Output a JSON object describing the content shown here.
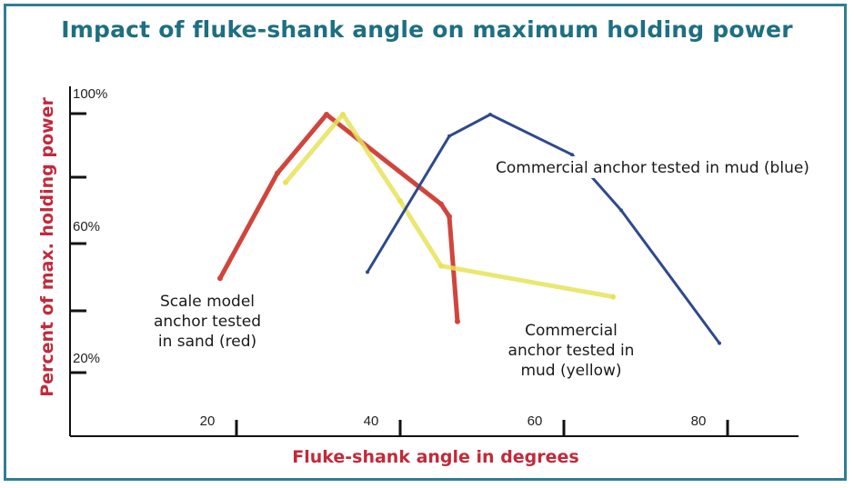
{
  "chart_data": {
    "type": "line",
    "title": "Impact of fluke-shank angle on maximum holding power",
    "xlabel": "Fluke-shank angle in degrees",
    "ylabel": "Percent of max. holding power",
    "x_ticks": [
      20,
      40,
      60,
      80
    ],
    "y_ticks": [
      "100%",
      "60%",
      "20%"
    ],
    "xlim": [
      10,
      85
    ],
    "ylim": [
      0,
      110
    ],
    "grid": false,
    "series": [
      {
        "name": "Scale model anchor tested in sand (red)",
        "color": "#d0453c",
        "x": [
          18,
          25,
          31,
          45,
          46,
          47
        ],
        "y": [
          47,
          81,
          100,
          71,
          67,
          33
        ]
      },
      {
        "name": "Commercial anchor tested in mud (yellow)",
        "color": "#e6e35a",
        "x": [
          26,
          33,
          40,
          45,
          66
        ],
        "y": [
          78,
          100,
          72,
          51,
          41
        ]
      },
      {
        "name": "Commercial anchor tested in mud (blue)",
        "color": "#2e4a8c",
        "x": [
          36,
          46,
          51,
          61,
          67,
          79
        ],
        "y": [
          49,
          93,
          100,
          87,
          69,
          26
        ]
      }
    ],
    "annotations": [
      {
        "lines": [
          "Commercial anchor tested in mud (blue)"
        ]
      },
      {
        "lines": [
          "Scale model",
          "anchor tested",
          "in sand (red)"
        ]
      },
      {
        "lines": [
          "Commercial",
          "anchor tested in",
          "mud (yellow)"
        ]
      }
    ]
  }
}
